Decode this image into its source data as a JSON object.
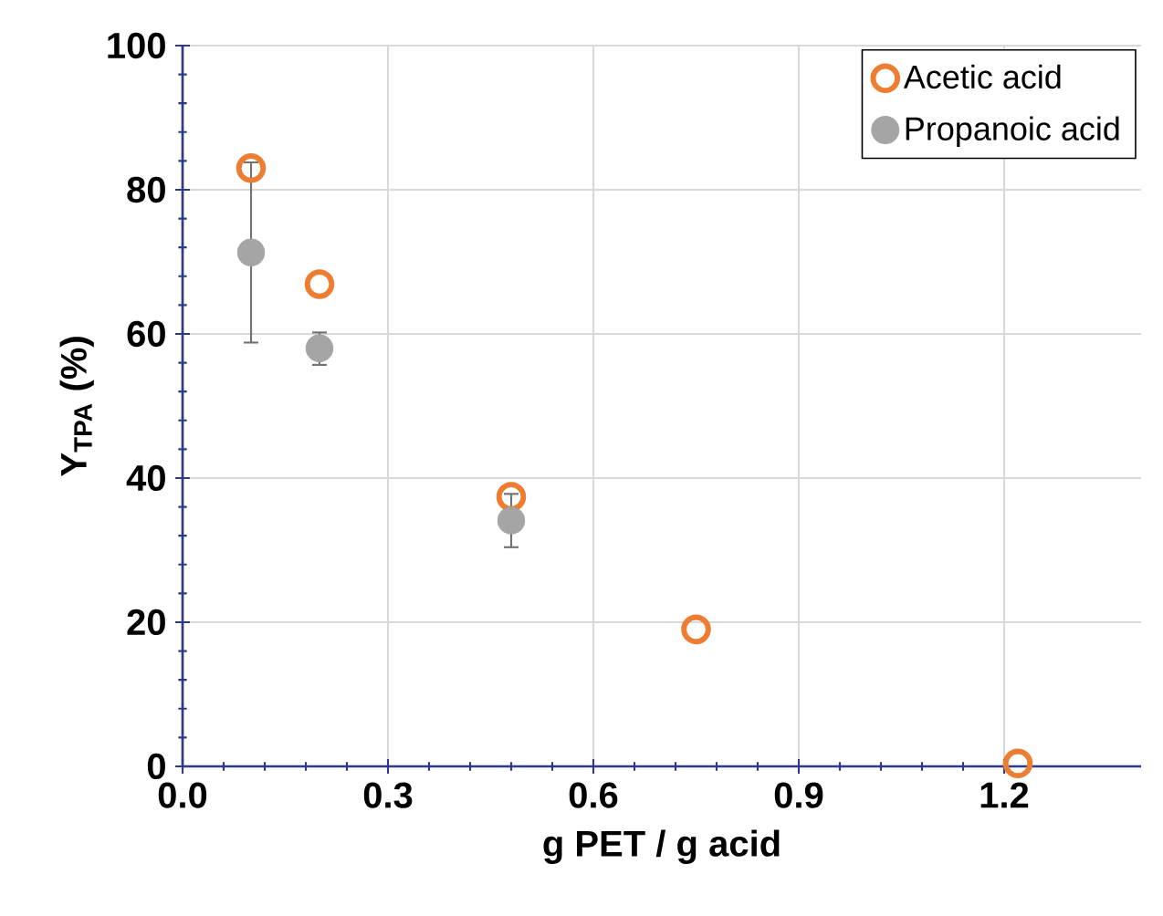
{
  "chart_data": {
    "type": "scatter",
    "xlabel": "g PET / g acid",
    "ylabel": "Y$_{TPA}$ (%)",
    "xlim": [
      0,
      1.4
    ],
    "xticks": [
      {
        "value": 0,
        "label": "0.0"
      },
      0.3,
      0.6,
      0.9,
      1.2
    ],
    "ylim": [
      0,
      100
    ],
    "yticks": [
      0,
      20,
      40,
      60,
      80,
      100
    ],
    "grid": true,
    "legend": "top right",
    "marker": "circle",
    "series": [
      {
        "name": "Acetic acid",
        "color": "#ed7d31",
        "x": [
          0.1,
          0.2,
          0.48,
          0.75,
          1.22
        ],
        "values": [
          83.0,
          66.9,
          37.4,
          19.0,
          0.4
        ]
      },
      {
        "name": "Propanoic acid",
        "color": "#a5a5a5",
        "x": [
          0.1,
          0.2,
          0.48
        ],
        "values": [
          71.3,
          58.0,
          34.1
        ],
        "errors": [
          [
            58.8,
            83.8
          ],
          [
            55.7,
            60.2
          ],
          [
            30.4,
            37.8
          ]
        ]
      }
    ]
  }
}
